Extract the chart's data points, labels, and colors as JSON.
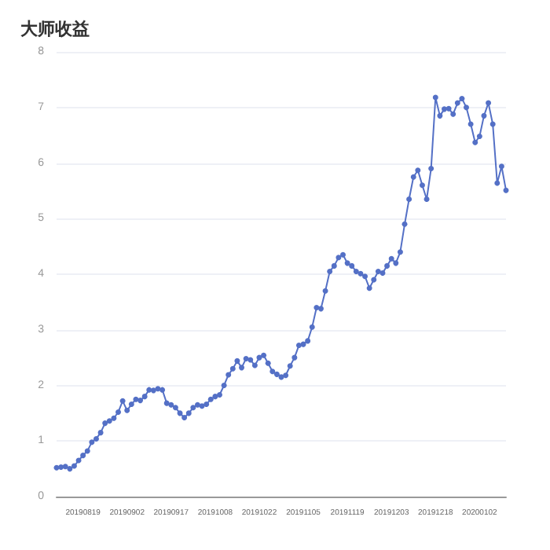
{
  "chart_data": {
    "type": "line",
    "title": "大师收益",
    "categories": [
      null,
      null,
      null,
      null,
      null,
      null,
      "20190819",
      null,
      null,
      null,
      null,
      null,
      null,
      null,
      null,
      null,
      "20190902",
      null,
      null,
      null,
      null,
      null,
      null,
      null,
      null,
      null,
      "20190917",
      null,
      null,
      null,
      null,
      null,
      null,
      null,
      null,
      null,
      "20191008",
      null,
      null,
      null,
      null,
      null,
      null,
      null,
      null,
      null,
      "20191022",
      null,
      null,
      null,
      null,
      null,
      null,
      null,
      null,
      null,
      "20191105",
      null,
      null,
      null,
      null,
      null,
      null,
      null,
      null,
      null,
      "20191119",
      null,
      null,
      null,
      null,
      null,
      null,
      null,
      null,
      null,
      "20191203",
      null,
      null,
      null,
      null,
      null,
      null,
      null,
      null,
      null,
      "20191218",
      null,
      null,
      null,
      null,
      null,
      null,
      null,
      null,
      null,
      "20200102",
      null,
      null,
      null,
      null,
      null,
      null
    ],
    "series": [
      {
        "color": "#5470c6",
        "values": [
          0.52,
          0.53,
          0.54,
          0.5,
          0.55,
          0.65,
          0.74,
          0.82,
          0.98,
          1.04,
          1.15,
          1.32,
          1.36,
          1.41,
          1.52,
          1.72,
          1.55,
          1.66,
          1.75,
          1.73,
          1.8,
          1.92,
          1.91,
          1.94,
          1.92,
          1.68,
          1.65,
          1.6,
          1.5,
          1.42,
          1.5,
          1.6,
          1.65,
          1.63,
          1.66,
          1.75,
          1.8,
          1.83,
          2.0,
          2.19,
          2.3,
          2.44,
          2.32,
          2.48,
          2.46,
          2.36,
          2.5,
          2.54,
          2.4,
          2.25,
          2.2,
          2.15,
          2.18,
          2.35,
          2.5,
          2.72,
          2.74,
          2.8,
          3.05,
          3.4,
          3.38,
          3.7,
          4.05,
          4.15,
          4.3,
          4.35,
          4.2,
          4.15,
          4.05,
          4.01,
          3.96,
          3.75,
          3.9,
          4.05,
          4.02,
          4.15,
          4.28,
          4.2,
          4.4,
          4.9,
          5.35,
          5.75,
          5.87,
          5.6,
          5.35,
          5.9,
          7.18,
          6.85,
          6.97,
          6.98,
          6.88,
          7.08,
          7.16,
          7.0,
          6.7,
          6.37,
          6.48,
          6.85,
          7.08,
          6.7,
          5.64,
          5.94,
          5.51
        ]
      }
    ],
    "ylim": [
      0,
      8
    ],
    "yticks": [
      0,
      1,
      2,
      3,
      4,
      5,
      6,
      7,
      8
    ],
    "grid": "y",
    "marker": "circle",
    "line_style": "solid"
  }
}
